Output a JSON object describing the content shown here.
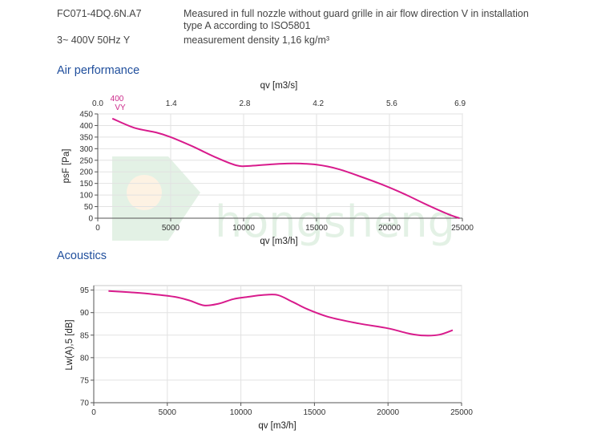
{
  "header": {
    "model": "FC071-4DQ.6N.A7",
    "supply": "3~ 400V 50Hz Y",
    "measure_line1": "Measured in full nozzle without guard grille in air flow direction V in installation",
    "measure_line2": "type A according to ISO5801",
    "density": "measurement density 1,16 kg/m³"
  },
  "sections": {
    "air": "Air performance",
    "acoustics": "Acoustics"
  },
  "colors": {
    "curve": "#d81b8c",
    "section_title": "#1f4e9c",
    "watermark": "#2e9d3c"
  },
  "watermark": "hongsheng",
  "chart_data": [
    {
      "type": "line",
      "ylabel": "psF [Pa]",
      "xlabel": "qv [m3/h]",
      "top_axis_label": "qv [m3/s]",
      "top_ticks": [
        "0.0",
        "1.4",
        "2.8",
        "4.2",
        "5.6",
        "6.9"
      ],
      "top_tick_values": [
        0,
        5040,
        10080,
        15120,
        20160,
        24840
      ],
      "curve_label": [
        "400",
        "VY"
      ],
      "xlim": [
        0,
        25000
      ],
      "ylim": [
        0,
        450
      ],
      "xticks": [
        0,
        5000,
        10000,
        15000,
        20000,
        25000
      ],
      "yticks": [
        0,
        50,
        100,
        150,
        200,
        250,
        300,
        350,
        400,
        450
      ],
      "series": [
        {
          "x": [
            1000,
            2500,
            4000,
            5000,
            6500,
            8000,
            9500,
            10500,
            12000,
            13500,
            15000,
            16500,
            18000,
            19500,
            21000,
            22500,
            24000,
            24800
          ],
          "y": [
            430,
            390,
            370,
            350,
            310,
            265,
            228,
            226,
            233,
            236,
            231,
            212,
            180,
            145,
            105,
            60,
            18,
            0
          ]
        }
      ]
    },
    {
      "type": "line",
      "ylabel": "Lw(A),5 [dB]",
      "xlabel": "qv [m3/h]",
      "xlim": [
        0,
        25000
      ],
      "ylim": [
        70,
        96
      ],
      "xticks": [
        0,
        5000,
        10000,
        15000,
        20000,
        25000
      ],
      "yticks": [
        70,
        75,
        80,
        85,
        90,
        95
      ],
      "series": [
        {
          "x": [
            1000,
            2500,
            4000,
            5500,
            6500,
            7500,
            8500,
            9500,
            10500,
            11500,
            12500,
            13500,
            14500,
            16000,
            18000,
            20000,
            21500,
            22500,
            23500,
            24400
          ],
          "y": [
            94.8,
            94.5,
            94.1,
            93.5,
            92.7,
            91.6,
            92.0,
            93.0,
            93.5,
            93.9,
            93.9,
            92.4,
            90.8,
            89.0,
            87.6,
            86.5,
            85.3,
            84.9,
            85.1,
            86.1
          ]
        }
      ]
    }
  ]
}
